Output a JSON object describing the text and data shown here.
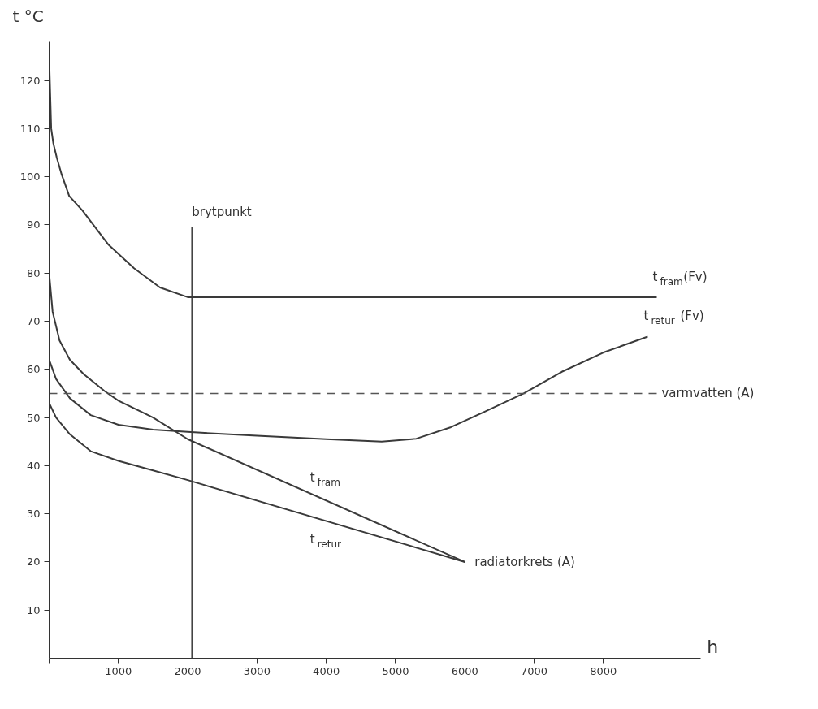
{
  "chart_data": {
    "type": "line",
    "xlabel": "h",
    "ylabel": "t °C",
    "xlim": [
      0,
      9400
    ],
    "ylim": [
      0,
      128
    ],
    "xticks": [
      {
        "value": 0,
        "label": null
      },
      1000,
      2000,
      3000,
      4000,
      5000,
      6000,
      7000,
      8000,
      {
        "value": 9000,
        "label": null
      }
    ],
    "yticks": [
      10,
      20,
      30,
      40,
      50,
      60,
      70,
      80,
      90,
      100,
      110,
      120
    ],
    "grid": false,
    "legend": false,
    "marker": "none",
    "line_style": "solid",
    "series": [
      {
        "name": "t$_{fram}$(Fv)",
        "color": "#3a3a3a",
        "x": [
          0,
          30,
          60,
          110,
          180,
          290,
          480,
          850,
          1225,
          1600,
          2000,
          8770
        ],
        "values": [
          125,
          110,
          107,
          104,
          100.5,
          96,
          93,
          86,
          81,
          77,
          75,
          75
        ]
      },
      {
        "name": "t$_{retur}$ (Fv)",
        "color": "#3a3a3a",
        "x": [
          0,
          100,
          300,
          600,
          1000,
          1500,
          2000,
          3000,
          4000,
          4800,
          5300,
          5800,
          6300,
          6850,
          7400,
          8000,
          8640
        ],
        "values": [
          62,
          58,
          54,
          50.5,
          48.5,
          47.5,
          47,
          46.2,
          45.5,
          45,
          45.6,
          48,
          51.3,
          55,
          59.5,
          63.5,
          66.8
        ]
      },
      {
        "name": "t$_{fram}$",
        "color": "#3a3a3a",
        "x": [
          0,
          50,
          150,
          300,
          500,
          800,
          1000,
          1500,
          2000,
          6000
        ],
        "values": [
          80,
          72,
          66,
          62,
          59,
          55.5,
          53.5,
          50,
          45.5,
          20
        ]
      },
      {
        "name": "t$_{retur}$",
        "color": "#3a3a3a",
        "x": [
          0,
          100,
          300,
          600,
          1000,
          1500,
          2000,
          6000
        ],
        "values": [
          53,
          50,
          46.5,
          43,
          41,
          39,
          37,
          20
        ]
      }
    ],
    "ref_lines": [
      {
        "axis": "x",
        "value": 2060,
        "label": "brytpunkt",
        "color": "#3a3a3a",
        "line_style": "solid"
      },
      {
        "axis": "y",
        "value": 55,
        "label": "varmvatten (A)",
        "color": "#555555",
        "line_style": "dashed"
      }
    ],
    "annotations": [
      {
        "text": "radiatorkrets (A)",
        "x": 6000,
        "y": 20
      }
    ]
  }
}
